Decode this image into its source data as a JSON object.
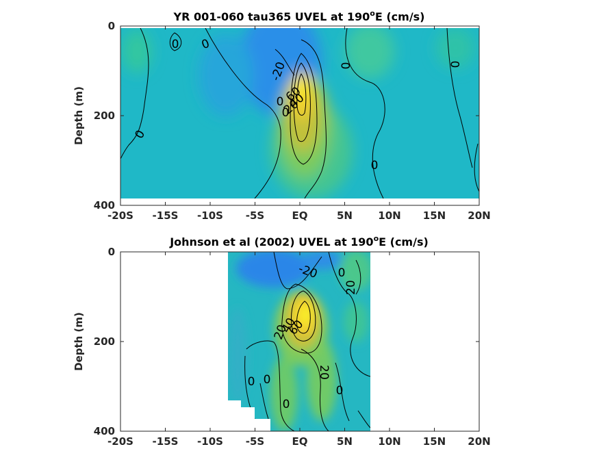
{
  "chart_data": [
    {
      "type": "heatmap",
      "title_main": "YR 001-060 tau365 UVEL at 190",
      "title_sup": "o",
      "title_tail": "E (cm/s)",
      "ylabel": "Depth (m)",
      "xticks": [
        "-20S",
        "-15S",
        "-10S",
        "-5S",
        "EQ",
        "5N",
        "10N",
        "15N",
        "20N"
      ],
      "yticks": [
        "0",
        "200",
        "400"
      ],
      "xlim": [
        -20,
        20
      ],
      "ylim": [
        0,
        400
      ],
      "data_extent": {
        "x": [
          -20,
          20
        ],
        "depth": [
          0,
          380
        ]
      },
      "contour_labels": [
        "0",
        "0",
        "0",
        "-20",
        "0",
        "0",
        "0",
        "0",
        "0",
        "20",
        "40",
        "60"
      ],
      "colormap": [
        "#3e26a8",
        "#2f8ef0",
        "#1aaed3",
        "#2dc7a3",
        "#7bcb5f",
        "#c8c13b",
        "#f8d12e",
        "#f9fb15"
      ]
    },
    {
      "type": "heatmap",
      "title_main": "Johnson et al (2002) UVEL at 190",
      "title_sup": "o",
      "title_tail": "E (cm/s)",
      "ylabel": "Depth (m)",
      "xticks": [
        "-20S",
        "-15S",
        "-10S",
        "-5S",
        "EQ",
        "5N",
        "10N",
        "15N",
        "20N"
      ],
      "yticks": [
        "0",
        "200",
        "400"
      ],
      "xlim": [
        -20,
        20
      ],
      "ylim": [
        0,
        400
      ],
      "data_extent": {
        "x": [
          -8,
          8
        ],
        "depth": [
          0,
          400
        ]
      },
      "contour_labels": [
        "-20",
        "20",
        "0",
        "20",
        "40",
        "60",
        "0",
        "0",
        "0",
        "20",
        "0"
      ],
      "colormap": [
        "#3e26a8",
        "#2f8ef0",
        "#1aaed3",
        "#2dc7a3",
        "#7bcb5f",
        "#c8c13b",
        "#f8d12e",
        "#f9fb15"
      ]
    }
  ]
}
